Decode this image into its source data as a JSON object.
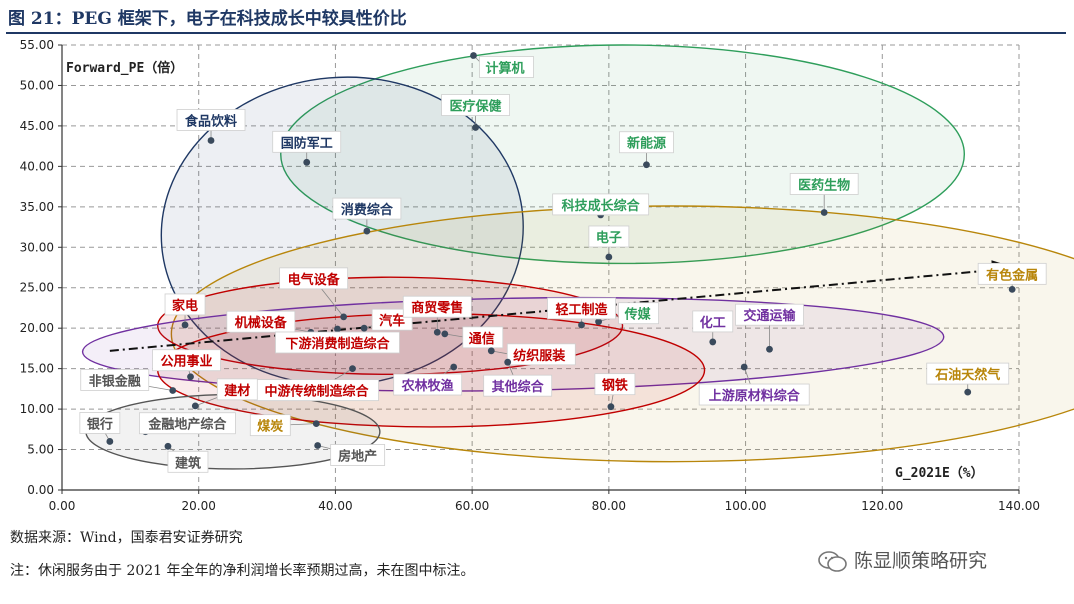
{
  "title": "图 21：PEG 框架下，电子在科技成长中较具性价比",
  "footer": {
    "source": "数据来源：Wind，国泰君安证券研究",
    "note": "注：休闲服务由于 2021 年全年的净利润增长率预期过高，未在图中标注。"
  },
  "watermark": "陈显顺策略研究",
  "chart_data": {
    "type": "scatter",
    "title": "",
    "xlabel": "G_2021E（%）",
    "ylabel": "Forward_PE（倍）",
    "xlim": [
      0,
      140
    ],
    "ylim": [
      0,
      55
    ],
    "xticks": [
      "0.00",
      "20.00",
      "40.00",
      "60.00",
      "80.00",
      "100.00",
      "120.00",
      "140.00"
    ],
    "yticks": [
      "0.00",
      "5.00",
      "10.00",
      "15.00",
      "20.00",
      "25.00",
      "30.00",
      "35.00",
      "40.00",
      "45.00",
      "50.00",
      "55.00"
    ],
    "grid": true,
    "colors": {
      "tech": "#2e9e5b",
      "consumer": "#1f3864",
      "cyclical": "#c00000",
      "resource": "#b8860b",
      "finance": "#555555",
      "purple": "#7030a0",
      "axis": "#333333",
      "grid": "#999999"
    },
    "points": [
      {
        "label": "计算机",
        "x": 60.2,
        "y": 53.7,
        "group": "tech"
      },
      {
        "label": "医疗保健",
        "x": 60.5,
        "y": 44.8,
        "group": "tech"
      },
      {
        "label": "新能源",
        "x": 85.5,
        "y": 40.2,
        "group": "tech"
      },
      {
        "label": "科技成长综合",
        "x": 78.8,
        "y": 34.0,
        "group": "tech"
      },
      {
        "label": "医药生物",
        "x": 111.5,
        "y": 34.3,
        "group": "tech"
      },
      {
        "label": "电子",
        "x": 80.0,
        "y": 28.8,
        "group": "tech"
      },
      {
        "label": "传媒",
        "x": 78.5,
        "y": 20.8,
        "group": "tech"
      },
      {
        "label": "食品饮料",
        "x": 21.8,
        "y": 43.2,
        "group": "consumer"
      },
      {
        "label": "国防军工",
        "x": 35.8,
        "y": 40.5,
        "group": "consumer"
      },
      {
        "label": "消费综合",
        "x": 44.6,
        "y": 32.0,
        "group": "consumer"
      },
      {
        "label": "电气设备",
        "x": 41.2,
        "y": 21.4,
        "group": "cyclical"
      },
      {
        "label": "汽车",
        "x": 44.2,
        "y": 20.0,
        "group": "cyclical"
      },
      {
        "label": "商贸零售",
        "x": 54.9,
        "y": 19.5,
        "group": "cyclical"
      },
      {
        "label": "通信",
        "x": 56.0,
        "y": 19.3,
        "group": "cyclical"
      },
      {
        "label": "家电",
        "x": 18.0,
        "y": 20.4,
        "group": "cyclical"
      },
      {
        "label": "机械设备",
        "x": 36.4,
        "y": 19.5,
        "group": "cyclical"
      },
      {
        "label": "下游消费制造综合",
        "x": 40.3,
        "y": 19.9,
        "group": "cyclical"
      },
      {
        "label": "轻工制造",
        "x": 76.0,
        "y": 20.4,
        "group": "cyclical"
      },
      {
        "label": "纺织服装",
        "x": 62.8,
        "y": 17.2,
        "group": "cyclical"
      },
      {
        "label": "中游传统制造综合",
        "x": 42.5,
        "y": 15.0,
        "group": "cyclical"
      },
      {
        "label": "建材",
        "x": 19.5,
        "y": 10.4,
        "group": "cyclical"
      },
      {
        "label": "钢铁",
        "x": 80.3,
        "y": 10.3,
        "group": "cyclical"
      },
      {
        "label": "公用事业",
        "x": 18.8,
        "y": 14.0,
        "group": "cyclical"
      },
      {
        "label": "农林牧渔",
        "x": 57.3,
        "y": 15.2,
        "group": "purple"
      },
      {
        "label": "其他综合",
        "x": 65.2,
        "y": 15.8,
        "group": "purple"
      },
      {
        "label": "化工",
        "x": 95.2,
        "y": 18.3,
        "group": "purple"
      },
      {
        "label": "交通运输",
        "x": 103.5,
        "y": 17.4,
        "group": "purple"
      },
      {
        "label": "上游原材料综合",
        "x": 99.8,
        "y": 15.2,
        "group": "purple"
      },
      {
        "label": "有色金属",
        "x": 139.0,
        "y": 24.8,
        "group": "resource"
      },
      {
        "label": "石油天然气",
        "x": 132.5,
        "y": 12.1,
        "group": "resource"
      },
      {
        "label": "煤炭",
        "x": 37.2,
        "y": 8.2,
        "group": "resource"
      },
      {
        "label": "非银金融",
        "x": 16.2,
        "y": 12.3,
        "group": "finance"
      },
      {
        "label": "银行",
        "x": 7.0,
        "y": 6.0,
        "group": "finance"
      },
      {
        "label": "金融地产综合",
        "x": 12.2,
        "y": 7.2,
        "group": "finance"
      },
      {
        "label": "建筑",
        "x": 15.5,
        "y": 5.4,
        "group": "finance"
      },
      {
        "label": "房地产",
        "x": 37.4,
        "y": 5.5,
        "group": "finance"
      }
    ],
    "trendline": {
      "from": [
        7,
        17.2
      ],
      "to": [
        139,
        27.4
      ]
    },
    "ellipses": [
      {
        "group": "tech",
        "cx": 82,
        "cy": 41.5,
        "rx": 50,
        "ry": 13.5,
        "rot": 0
      },
      {
        "group": "consumer",
        "cx": 41,
        "cy": 32,
        "rx": 26.5,
        "ry": 19,
        "rot": -5
      },
      {
        "group": "resource",
        "cx": 89,
        "cy": 19.3,
        "rx": 73,
        "ry": 15.8,
        "rot": 0
      },
      {
        "group": "cyclical",
        "cx": 48,
        "cy": 20.3,
        "rx": 34,
        "ry": 6,
        "rot": 0
      },
      {
        "group": "purple",
        "cx": 66,
        "cy": 18,
        "rx": 63,
        "ry": 5.7,
        "rot": -1
      },
      {
        "group": "cyclical",
        "cx": 54,
        "cy": 14.8,
        "rx": 40,
        "ry": 7,
        "rot": 0
      },
      {
        "group": "finance",
        "cx": 25,
        "cy": 7.2,
        "rx": 21.5,
        "ry": 4.6,
        "rot": 0
      }
    ]
  }
}
